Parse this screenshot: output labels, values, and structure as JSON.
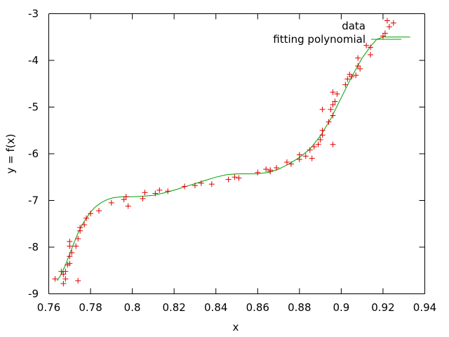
{
  "chart_data": {
    "type": "scatter",
    "title": "",
    "xlabel": "x",
    "ylabel": "y = f(x)",
    "xlim": [
      0.76,
      0.94
    ],
    "ylim": [
      -9,
      -3
    ],
    "xticks": [
      0.76,
      0.78,
      0.8,
      0.82,
      0.84,
      0.86,
      0.88,
      0.9,
      0.92,
      0.94
    ],
    "xtick_labels": [
      "0.76",
      "0.78",
      "0.8",
      "0.82",
      "0.84",
      "0.86",
      "0.88",
      "0.9",
      "0.92",
      "0.94"
    ],
    "yticks": [
      -9,
      -8,
      -7,
      -6,
      -5,
      -4,
      -3
    ],
    "ytick_labels": [
      "-9",
      "-8",
      "-7",
      "-6",
      "-5",
      "-4",
      "-3"
    ],
    "grid": false,
    "legend_position": "top-right",
    "series": [
      {
        "name": "data",
        "kind": "points",
        "marker": "plus",
        "color": "#dd0000",
        "points": [
          [
            0.763,
            -8.68
          ],
          [
            0.766,
            -8.52
          ],
          [
            0.767,
            -8.78
          ],
          [
            0.767,
            -8.58
          ],
          [
            0.768,
            -8.52
          ],
          [
            0.768,
            -8.68
          ],
          [
            0.769,
            -8.38
          ],
          [
            0.77,
            -8.2
          ],
          [
            0.77,
            -7.98
          ],
          [
            0.77,
            -7.88
          ],
          [
            0.771,
            -8.12
          ],
          [
            0.77,
            -8.35
          ],
          [
            0.773,
            -7.98
          ],
          [
            0.774,
            -7.82
          ],
          [
            0.775,
            -7.65
          ],
          [
            0.775,
            -7.58
          ],
          [
            0.777,
            -7.52
          ],
          [
            0.778,
            -7.38
          ],
          [
            0.78,
            -7.28
          ],
          [
            0.774,
            -8.72
          ],
          [
            0.784,
            -7.22
          ],
          [
            0.79,
            -7.05
          ],
          [
            0.796,
            -6.98
          ],
          [
            0.797,
            -6.92
          ],
          [
            0.798,
            -7.12
          ],
          [
            0.805,
            -6.96
          ],
          [
            0.806,
            -6.83
          ],
          [
            0.811,
            -6.85
          ],
          [
            0.813,
            -6.78
          ],
          [
            0.817,
            -6.8
          ],
          [
            0.825,
            -6.7
          ],
          [
            0.83,
            -6.68
          ],
          [
            0.833,
            -6.63
          ],
          [
            0.838,
            -6.65
          ],
          [
            0.846,
            -6.55
          ],
          [
            0.849,
            -6.5
          ],
          [
            0.851,
            -6.52
          ],
          [
            0.86,
            -6.4
          ],
          [
            0.864,
            -6.33
          ],
          [
            0.866,
            -6.38
          ],
          [
            0.866,
            -6.35
          ],
          [
            0.869,
            -6.3
          ],
          [
            0.874,
            -6.18
          ],
          [
            0.876,
            -6.22
          ],
          [
            0.88,
            -6.02
          ],
          [
            0.88,
            -6.12
          ],
          [
            0.883,
            -6.05
          ],
          [
            0.885,
            -5.92
          ],
          [
            0.886,
            -6.1
          ],
          [
            0.887,
            -5.85
          ],
          [
            0.889,
            -5.8
          ],
          [
            0.89,
            -5.7
          ],
          [
            0.891,
            -5.6
          ],
          [
            0.891,
            -5.5
          ],
          [
            0.891,
            -5.05
          ],
          [
            0.894,
            -5.32
          ],
          [
            0.895,
            -5.05
          ],
          [
            0.896,
            -5.18
          ],
          [
            0.896,
            -4.95
          ],
          [
            0.896,
            -4.68
          ],
          [
            0.896,
            -5.8
          ],
          [
            0.897,
            -4.88
          ],
          [
            0.898,
            -4.72
          ],
          [
            0.902,
            -4.52
          ],
          [
            0.903,
            -4.4
          ],
          [
            0.904,
            -4.3
          ],
          [
            0.905,
            -4.35
          ],
          [
            0.907,
            -4.32
          ],
          [
            0.908,
            -4.12
          ],
          [
            0.908,
            -3.95
          ],
          [
            0.909,
            -4.18
          ],
          [
            0.912,
            -3.68
          ],
          [
            0.914,
            -3.88
          ],
          [
            0.914,
            -3.72
          ],
          [
            0.92,
            -3.48
          ],
          [
            0.921,
            -3.42
          ],
          [
            0.922,
            -3.15
          ],
          [
            0.923,
            -3.28
          ],
          [
            0.925,
            -3.2
          ]
        ]
      },
      {
        "name": "fitting polynomial",
        "kind": "line",
        "color": "#00a000",
        "points": [
          [
            0.764,
            -8.72
          ],
          [
            0.766,
            -8.58
          ],
          [
            0.768,
            -8.38
          ],
          [
            0.77,
            -8.15
          ],
          [
            0.772,
            -7.92
          ],
          [
            0.774,
            -7.7
          ],
          [
            0.776,
            -7.52
          ],
          [
            0.778,
            -7.38
          ],
          [
            0.78,
            -7.25
          ],
          [
            0.782,
            -7.15
          ],
          [
            0.785,
            -7.05
          ],
          [
            0.788,
            -6.98
          ],
          [
            0.791,
            -6.94
          ],
          [
            0.795,
            -6.92
          ],
          [
            0.8,
            -6.92
          ],
          [
            0.805,
            -6.91
          ],
          [
            0.81,
            -6.89
          ],
          [
            0.815,
            -6.84
          ],
          [
            0.82,
            -6.78
          ],
          [
            0.825,
            -6.71
          ],
          [
            0.83,
            -6.64
          ],
          [
            0.835,
            -6.57
          ],
          [
            0.84,
            -6.5
          ],
          [
            0.845,
            -6.45
          ],
          [
            0.85,
            -6.43
          ],
          [
            0.855,
            -6.43
          ],
          [
            0.86,
            -6.43
          ],
          [
            0.865,
            -6.4
          ],
          [
            0.87,
            -6.33
          ],
          [
            0.875,
            -6.22
          ],
          [
            0.88,
            -6.08
          ],
          [
            0.885,
            -5.9
          ],
          [
            0.89,
            -5.62
          ],
          [
            0.895,
            -5.25
          ],
          [
            0.9,
            -4.8
          ],
          [
            0.905,
            -4.35
          ],
          [
            0.91,
            -3.95
          ],
          [
            0.914,
            -3.7
          ],
          [
            0.917,
            -3.55
          ],
          [
            0.92,
            -3.5
          ],
          [
            0.925,
            -3.5
          ],
          [
            0.933,
            -3.5
          ]
        ]
      }
    ]
  }
}
